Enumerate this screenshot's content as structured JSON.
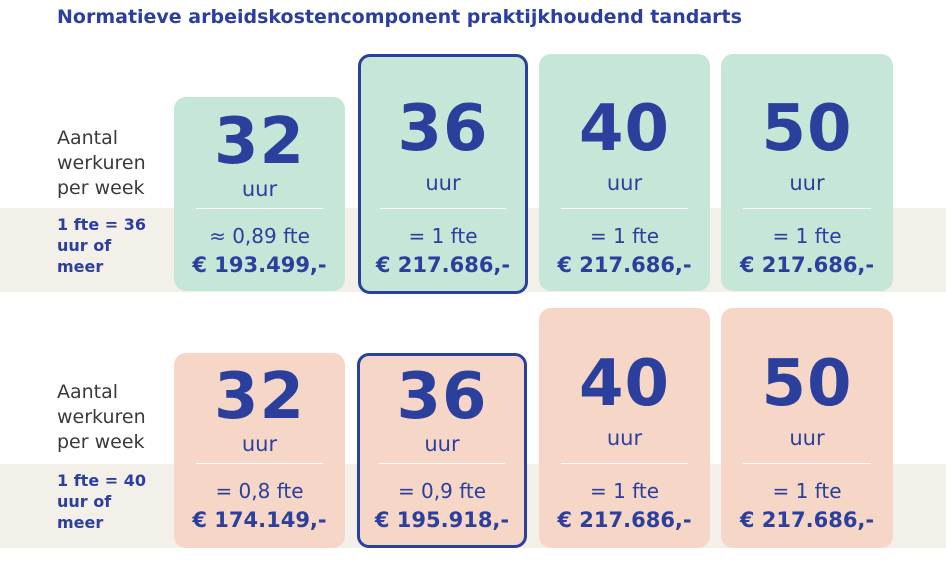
{
  "title": "Normatieve arbeidskostencomponent praktijkhoudend tandarts",
  "sections": [
    {
      "row_label": "Aantal werkuren per week",
      "fte_label": "1 fte = 36 uur of meer",
      "cards": [
        {
          "hours": "32",
          "unit": "uur",
          "fte": "≈ 0,89 fte",
          "amount": "€ 193.499,-"
        },
        {
          "hours": "36",
          "unit": "uur",
          "fte": "= 1 fte",
          "amount": "€ 217.686,-"
        },
        {
          "hours": "40",
          "unit": "uur",
          "fte": "= 1 fte",
          "amount": "€ 217.686,-"
        },
        {
          "hours": "50",
          "unit": "uur",
          "fte": "= 1 fte",
          "amount": "€ 217.686,-"
        }
      ]
    },
    {
      "row_label": "Aantal werkuren per week",
      "fte_label": "1 fte = 40 uur of meer",
      "cards": [
        {
          "hours": "32",
          "unit": "uur",
          "fte": "= 0,8 fte",
          "amount": "€ 174.149,-"
        },
        {
          "hours": "36",
          "unit": "uur",
          "fte": "= 0,9 fte",
          "amount": "€ 195.918,-"
        },
        {
          "hours": "40",
          "unit": "uur",
          "fte": "= 1 fte",
          "amount": "€ 217.686,-"
        },
        {
          "hours": "50",
          "unit": "uur",
          "fte": "= 1 fte",
          "amount": "€ 217.686,-"
        }
      ]
    }
  ]
}
